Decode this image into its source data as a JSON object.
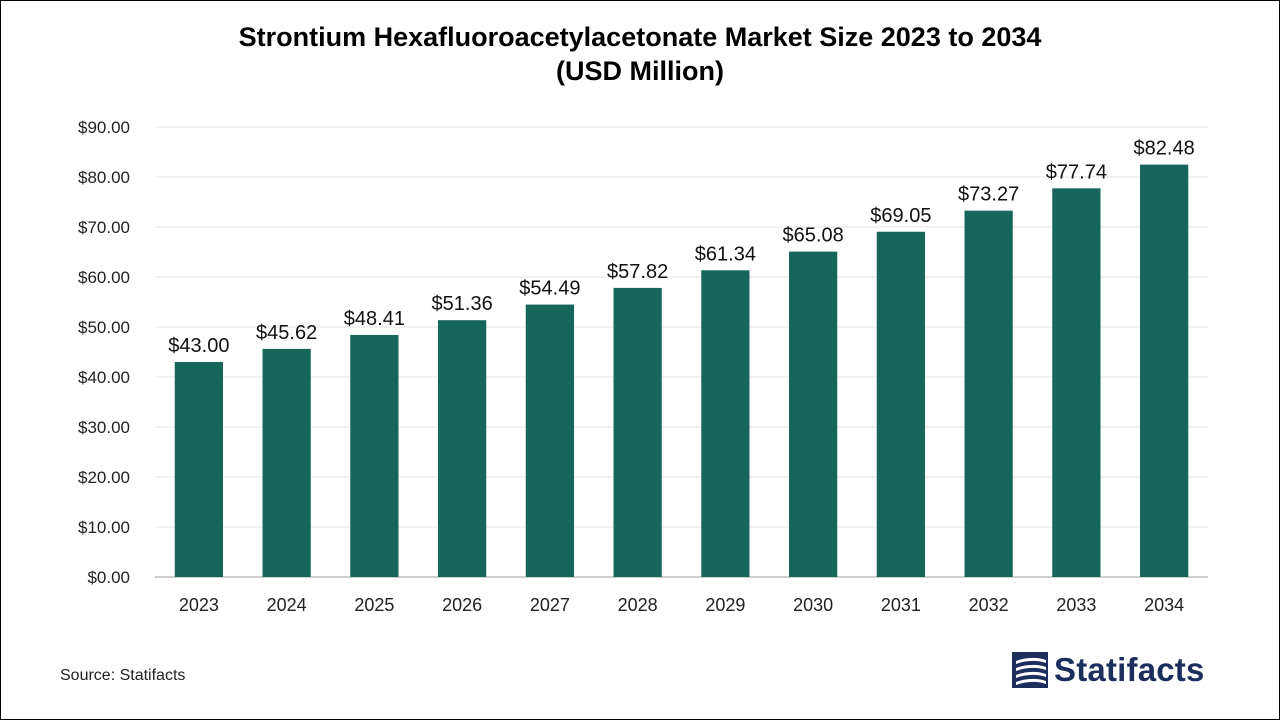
{
  "chart_data": {
    "type": "bar",
    "title_line1": "Strontium Hexafluoroacetylacetonate Market Size 2023 to 2034",
    "title_line2": "(USD Million)",
    "categories": [
      "2023",
      "2024",
      "2025",
      "2026",
      "2027",
      "2028",
      "2029",
      "2030",
      "2031",
      "2032",
      "2033",
      "2034"
    ],
    "values": [
      43.0,
      45.62,
      48.41,
      51.36,
      54.49,
      57.82,
      61.34,
      65.08,
      69.05,
      73.27,
      77.74,
      82.48
    ],
    "data_labels": [
      "$43.00",
      "$45.62",
      "$48.41",
      "$51.36",
      "$54.49",
      "$57.82",
      "$61.34",
      "$65.08",
      "$69.05",
      "$73.27",
      "$77.74",
      "$82.48"
    ],
    "ylim": [
      0,
      90
    ],
    "yticks": [
      0,
      10,
      20,
      30,
      40,
      50,
      60,
      70,
      80,
      90
    ],
    "ytick_labels": [
      "$0.00",
      "$10.00",
      "$20.00",
      "$30.00",
      "$40.00",
      "$50.00",
      "$60.00",
      "$70.00",
      "$80.00",
      "$90.00"
    ],
    "grid": true,
    "bar_color": "#17665a",
    "grid_color": "#e6e6e6",
    "axis_color": "#bfbfbf"
  },
  "footer": {
    "source": "Source: Statifacts",
    "logo_text": "Statifacts",
    "logo_icon": "statifacts-logo-icon",
    "logo_color": "#1c2e5c"
  }
}
